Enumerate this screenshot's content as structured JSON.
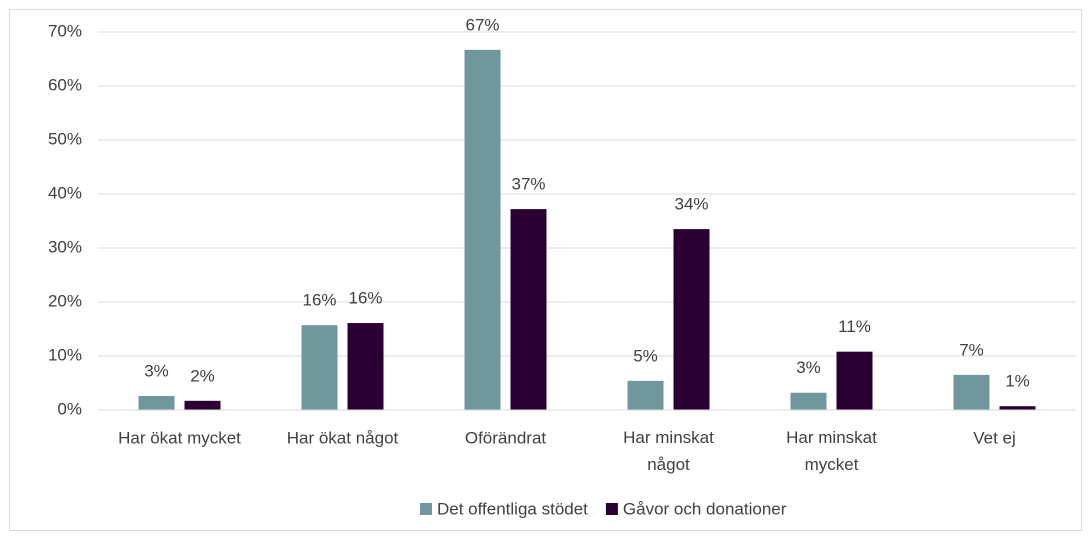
{
  "chart_data": {
    "type": "bar",
    "categories": [
      "Har ökat mycket",
      "Har ökat något",
      "Oförändrat",
      "Har minskat något",
      "Har minskat mycket",
      "Vet ej"
    ],
    "series": [
      {
        "name": "Det offentliga stödet",
        "color": "#6f979c",
        "values": [
          2.6,
          15.7,
          66.7,
          5.4,
          3.2,
          6.5
        ],
        "value_labels": [
          "3%",
          "16%",
          "67%",
          "5%",
          "3%",
          "7%"
        ]
      },
      {
        "name": "Gåvor och donationer",
        "color": "#2a0033",
        "values": [
          1.7,
          16.1,
          37.2,
          33.5,
          10.8,
          0.7
        ],
        "value_labels": [
          "2%",
          "16%",
          "37%",
          "34%",
          "11%",
          "1%"
        ]
      }
    ],
    "ylim": [
      0,
      70
    ],
    "yticks": [
      {
        "value": 0,
        "label": "0%"
      },
      {
        "value": 10,
        "label": "10%"
      },
      {
        "value": 20,
        "label": "20%"
      },
      {
        "value": 30,
        "label": "30%"
      },
      {
        "value": 40,
        "label": "40%"
      },
      {
        "value": 50,
        "label": "50%"
      },
      {
        "value": 60,
        "label": "60%"
      },
      {
        "value": 70,
        "label": "70%"
      }
    ],
    "grid": true,
    "legend": "bottom"
  }
}
